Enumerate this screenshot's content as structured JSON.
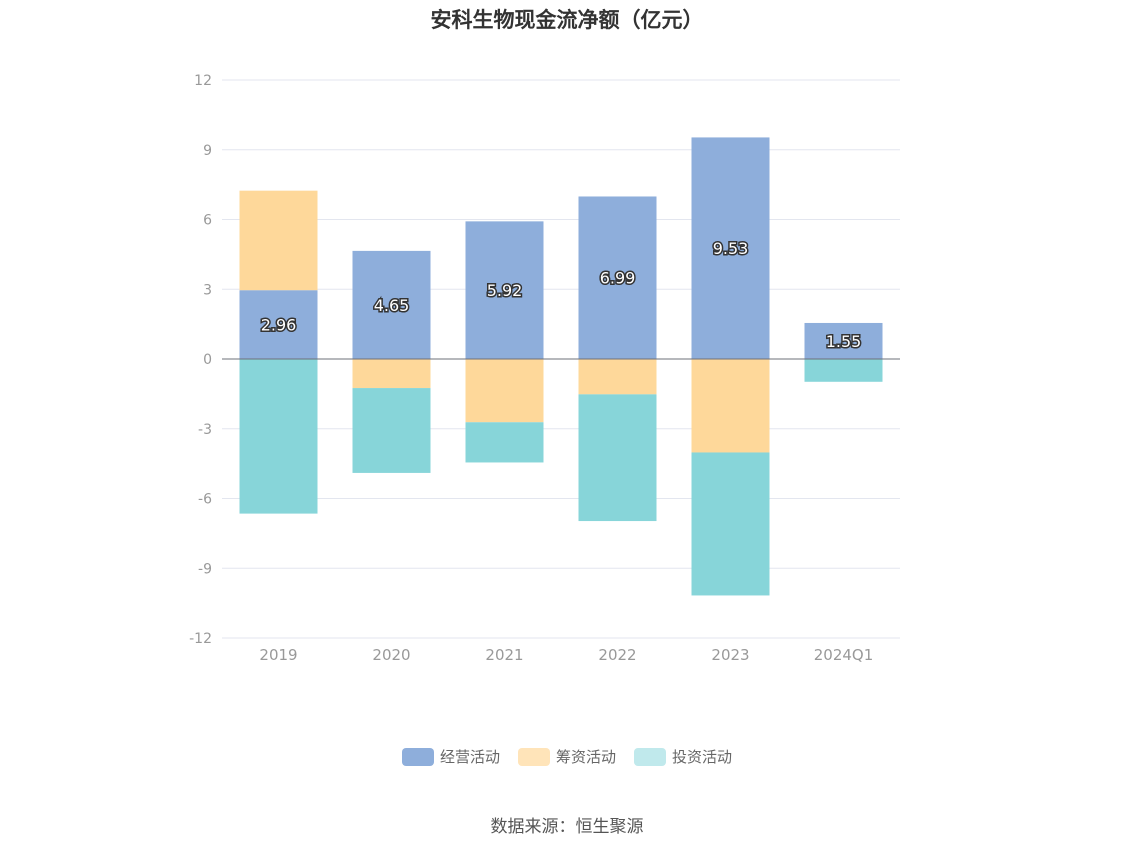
{
  "chart_data": {
    "type": "bar",
    "stacked": true,
    "title": "安科生物现金流净额（亿元）",
    "categories": [
      "2019",
      "2020",
      "2021",
      "2022",
      "2023",
      "2024Q1"
    ],
    "ylim": [
      -12,
      12
    ],
    "yticks": [
      12,
      9,
      6,
      3,
      0,
      -3,
      -6,
      -9,
      -12
    ],
    "grid": true,
    "legend_position": "bottom",
    "series": [
      {
        "name": "经营活动",
        "color": "#8eaedb",
        "values": [
          2.96,
          4.65,
          5.92,
          6.99,
          9.53,
          1.55
        ],
        "show_labels": true
      },
      {
        "name": "筹资活动",
        "color": "#fed89a",
        "values": [
          4.28,
          -1.25,
          -2.72,
          -1.52,
          -4.02,
          0.0
        ],
        "show_labels": false
      },
      {
        "name": "投资活动",
        "color": "#87d5d9",
        "values": [
          -6.65,
          -3.65,
          -1.73,
          -5.45,
          -6.15,
          -0.98
        ],
        "show_labels": false
      }
    ]
  },
  "legend": [
    {
      "label": "经营活动",
      "color": "#8eaedb"
    },
    {
      "label": "筹资活动",
      "color": "#ffe4b9"
    },
    {
      "label": "投资活动",
      "color": "#c0e9ec"
    }
  ],
  "source": "数据来源：恒生聚源"
}
